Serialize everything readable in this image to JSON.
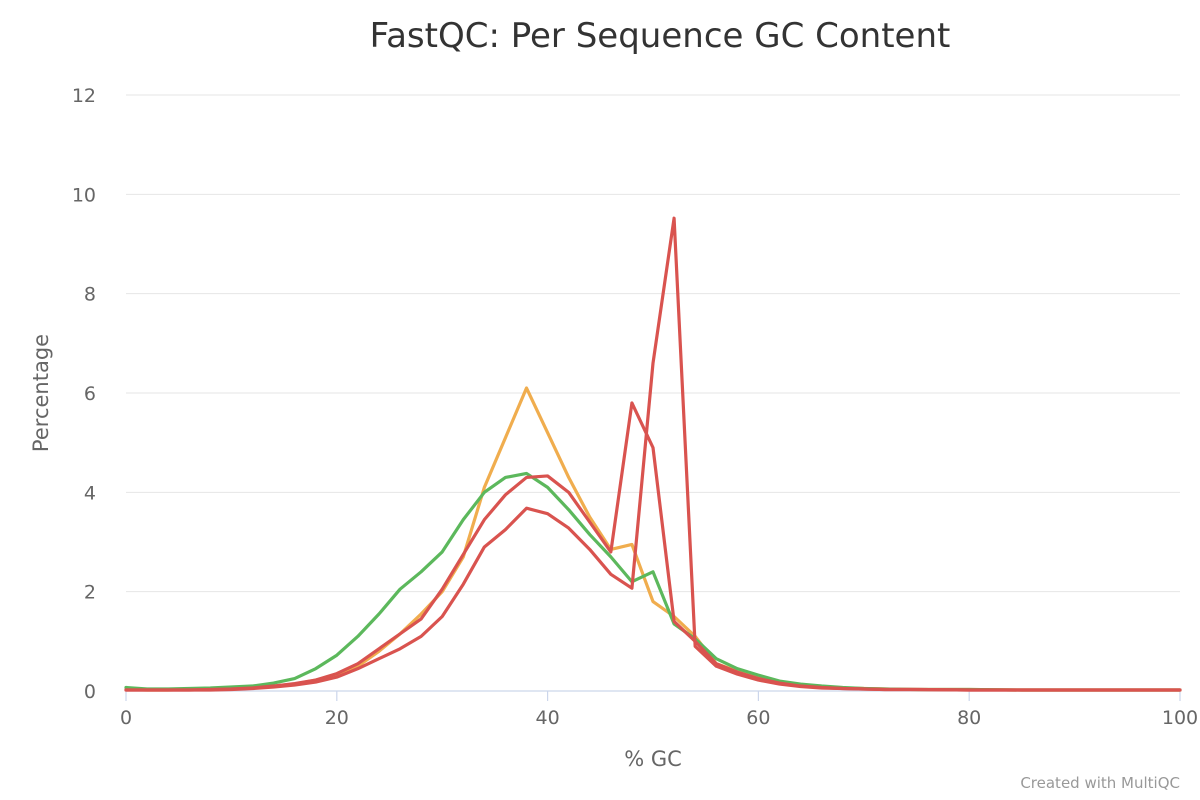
{
  "chart_data": {
    "type": "line",
    "title": "FastQC: Per Sequence GC Content",
    "xlabel": "% GC",
    "ylabel": "Percentage",
    "xlim": [
      0,
      100
    ],
    "ylim": [
      0,
      12
    ],
    "xticks": [
      0,
      20,
      40,
      60,
      80,
      100
    ],
    "yticks": [
      0,
      2,
      4,
      6,
      8,
      10,
      12
    ],
    "grid": true,
    "series": [
      {
        "color": "#f0ad4e",
        "x": [
          0,
          2,
          4,
          6,
          8,
          10,
          12,
          14,
          16,
          18,
          20,
          22,
          24,
          26,
          28,
          30,
          32,
          34,
          36,
          38,
          40,
          42,
          44,
          46,
          48,
          50,
          52,
          54,
          56,
          58,
          60,
          62,
          64,
          66,
          68,
          70,
          72,
          75,
          80,
          85,
          90,
          95,
          100
        ],
        "y": [
          0.03,
          0.02,
          0.02,
          0.03,
          0.04,
          0.05,
          0.07,
          0.1,
          0.14,
          0.22,
          0.32,
          0.5,
          0.8,
          1.15,
          1.55,
          2.0,
          2.7,
          4.1,
          5.1,
          6.1,
          5.2,
          4.3,
          3.5,
          2.85,
          2.95,
          1.8,
          1.5,
          1.1,
          0.55,
          0.4,
          0.28,
          0.18,
          0.12,
          0.09,
          0.06,
          0.05,
          0.04,
          0.03,
          0.03,
          0.02,
          0.02,
          0.02,
          0.02
        ]
      },
      {
        "color": "#5cb85c",
        "x": [
          0,
          2,
          4,
          6,
          8,
          10,
          12,
          14,
          16,
          18,
          20,
          22,
          24,
          26,
          28,
          30,
          32,
          34,
          36,
          38,
          40,
          42,
          44,
          46,
          48,
          50,
          52,
          54,
          56,
          58,
          60,
          62,
          64,
          66,
          68,
          70,
          72,
          75,
          80,
          85,
          90,
          95,
          100
        ],
        "y": [
          0.07,
          0.04,
          0.04,
          0.05,
          0.06,
          0.08,
          0.1,
          0.16,
          0.25,
          0.45,
          0.72,
          1.1,
          1.55,
          2.05,
          2.4,
          2.8,
          3.45,
          4.0,
          4.3,
          4.38,
          4.1,
          3.65,
          3.15,
          2.7,
          2.2,
          2.4,
          1.35,
          1.05,
          0.65,
          0.45,
          0.32,
          0.2,
          0.14,
          0.1,
          0.07,
          0.05,
          0.04,
          0.03,
          0.03,
          0.02,
          0.02,
          0.02,
          0.02
        ]
      },
      {
        "color": "#d9534f",
        "x": [
          0,
          2,
          4,
          6,
          8,
          10,
          12,
          14,
          16,
          18,
          20,
          22,
          24,
          26,
          28,
          30,
          32,
          34,
          36,
          38,
          40,
          42,
          44,
          46,
          48,
          50,
          52,
          54,
          56,
          58,
          60,
          62,
          64,
          66,
          68,
          70,
          72,
          75,
          80,
          85,
          90,
          95,
          100
        ],
        "y": [
          0.02,
          0.02,
          0.02,
          0.02,
          0.03,
          0.04,
          0.06,
          0.1,
          0.15,
          0.22,
          0.35,
          0.55,
          0.85,
          1.15,
          1.45,
          2.05,
          2.75,
          3.45,
          3.95,
          4.3,
          4.33,
          4.0,
          3.4,
          2.8,
          5.8,
          4.9,
          1.4,
          1.0,
          0.55,
          0.38,
          0.25,
          0.16,
          0.1,
          0.07,
          0.05,
          0.04,
          0.03,
          0.03,
          0.02,
          0.02,
          0.02,
          0.02,
          0.02
        ]
      },
      {
        "color": "#d9534f",
        "x": [
          0,
          2,
          4,
          6,
          8,
          10,
          12,
          14,
          16,
          18,
          20,
          22,
          24,
          26,
          28,
          30,
          32,
          34,
          36,
          38,
          40,
          42,
          44,
          46,
          48,
          50,
          52,
          54,
          56,
          58,
          60,
          62,
          64,
          66,
          68,
          70,
          72,
          75,
          80,
          85,
          90,
          95,
          100
        ],
        "y": [
          0.02,
          0.02,
          0.02,
          0.02,
          0.02,
          0.03,
          0.05,
          0.08,
          0.12,
          0.18,
          0.28,
          0.45,
          0.65,
          0.85,
          1.1,
          1.5,
          2.15,
          2.9,
          3.25,
          3.68,
          3.57,
          3.28,
          2.85,
          2.35,
          2.07,
          6.6,
          9.52,
          0.9,
          0.5,
          0.34,
          0.22,
          0.14,
          0.09,
          0.06,
          0.05,
          0.04,
          0.03,
          0.03,
          0.02,
          0.02,
          0.02,
          0.02,
          0.02
        ]
      }
    ]
  },
  "footer": {
    "credit": "Created with MultiQC"
  }
}
